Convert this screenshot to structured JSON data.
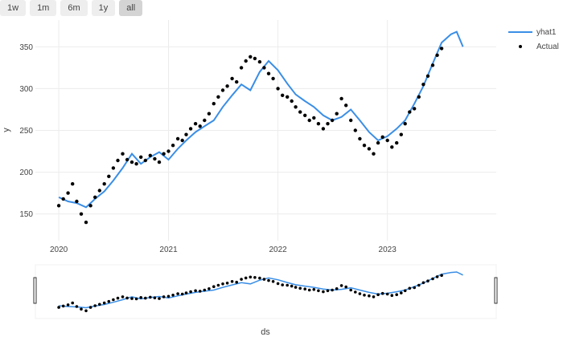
{
  "range_selector": {
    "buttons": [
      "1w",
      "1m",
      "6m",
      "1y",
      "all"
    ],
    "active": "all"
  },
  "colors": {
    "forecast": "#3a8ee6",
    "actual": "#000000",
    "grid": "#ececec",
    "slider_bg": "#ffffff"
  },
  "chart_data": {
    "type": "line",
    "title": "",
    "xlabel": "ds",
    "ylabel": "y",
    "xlim": [
      "2019-10-15",
      "2023-12-30"
    ],
    "ylim": [
      118,
      382
    ],
    "x_ticks": [
      "2020",
      "2021",
      "2022",
      "2023"
    ],
    "y_ticks": [
      "150",
      "200",
      "250",
      "300",
      "350"
    ],
    "grid": true,
    "legend_position": "top-right",
    "has_range_slider": true,
    "series": [
      {
        "name": "yhat1",
        "style": "line",
        "x": [
          "2020-01-01",
          "2020-02-01",
          "2020-03-01",
          "2020-04-01",
          "2020-05-01",
          "2020-06-01",
          "2020-07-01",
          "2020-08-01",
          "2020-09-01",
          "2020-10-01",
          "2020-11-01",
          "2020-12-01",
          "2021-01-01",
          "2021-02-01",
          "2021-03-01",
          "2021-04-01",
          "2021-05-01",
          "2021-06-01",
          "2021-07-01",
          "2021-08-01",
          "2021-09-01",
          "2021-10-01",
          "2021-11-01",
          "2021-12-01",
          "2022-01-01",
          "2022-02-01",
          "2022-03-01",
          "2022-04-01",
          "2022-05-01",
          "2022-06-01",
          "2022-07-01",
          "2022-08-01",
          "2022-09-01",
          "2022-10-01",
          "2022-11-01",
          "2022-12-01",
          "2023-01-01",
          "2023-02-01",
          "2023-03-01",
          "2023-04-01",
          "2023-05-01",
          "2023-06-01",
          "2023-07-01",
          "2023-08-01",
          "2023-08-20",
          "2023-09-10"
        ],
        "y": [
          170,
          165,
          163,
          158,
          168,
          177,
          190,
          205,
          222,
          210,
          218,
          224,
          215,
          228,
          238,
          248,
          255,
          262,
          278,
          292,
          305,
          298,
          320,
          333,
          322,
          306,
          293,
          285,
          278,
          268,
          262,
          266,
          275,
          262,
          248,
          238,
          243,
          252,
          262,
          282,
          303,
          330,
          355,
          365,
          368,
          350
        ]
      },
      {
        "name": "Actual",
        "style": "markers",
        "x": [
          "2020-01-01",
          "2020-01-16",
          "2020-02-01",
          "2020-02-16",
          "2020-03-01",
          "2020-03-16",
          "2020-04-01",
          "2020-04-16",
          "2020-05-01",
          "2020-05-16",
          "2020-06-01",
          "2020-06-16",
          "2020-07-01",
          "2020-07-16",
          "2020-08-01",
          "2020-08-16",
          "2020-09-01",
          "2020-09-16",
          "2020-10-01",
          "2020-10-16",
          "2020-11-01",
          "2020-11-16",
          "2020-12-01",
          "2020-12-16",
          "2021-01-01",
          "2021-01-16",
          "2021-02-01",
          "2021-02-16",
          "2021-03-01",
          "2021-03-16",
          "2021-04-01",
          "2021-04-16",
          "2021-05-01",
          "2021-05-16",
          "2021-06-01",
          "2021-06-16",
          "2021-07-01",
          "2021-07-16",
          "2021-08-01",
          "2021-08-16",
          "2021-09-01",
          "2021-09-16",
          "2021-10-01",
          "2021-10-16",
          "2021-11-01",
          "2021-11-16",
          "2021-12-01",
          "2021-12-16",
          "2022-01-01",
          "2022-01-16",
          "2022-02-01",
          "2022-02-16",
          "2022-03-01",
          "2022-03-16",
          "2022-04-01",
          "2022-04-16",
          "2022-05-01",
          "2022-05-16",
          "2022-06-01",
          "2022-06-16",
          "2022-07-01",
          "2022-07-16",
          "2022-08-01",
          "2022-08-16",
          "2022-09-01",
          "2022-09-16",
          "2022-10-01",
          "2022-10-16",
          "2022-11-01",
          "2022-11-16",
          "2022-12-01",
          "2022-12-16",
          "2023-01-01",
          "2023-01-16",
          "2023-02-01",
          "2023-02-16",
          "2023-03-01",
          "2023-03-16",
          "2023-04-01",
          "2023-04-16",
          "2023-05-01",
          "2023-05-16",
          "2023-06-01",
          "2023-06-16",
          "2023-07-01"
        ],
        "y": [
          160,
          168,
          175,
          186,
          165,
          150,
          140,
          160,
          170,
          178,
          186,
          195,
          205,
          214,
          222,
          215,
          212,
          210,
          218,
          214,
          220,
          216,
          212,
          222,
          225,
          232,
          240,
          238,
          245,
          252,
          258,
          255,
          262,
          270,
          282,
          290,
          298,
          303,
          312,
          308,
          325,
          333,
          338,
          336,
          332,
          325,
          318,
          312,
          300,
          292,
          290,
          285,
          278,
          272,
          268,
          262,
          265,
          258,
          252,
          258,
          262,
          270,
          288,
          280,
          262,
          250,
          240,
          232,
          228,
          222,
          235,
          242,
          238,
          230,
          235,
          245,
          258,
          272,
          276,
          290,
          305,
          315,
          328,
          340,
          348
        ]
      }
    ]
  }
}
